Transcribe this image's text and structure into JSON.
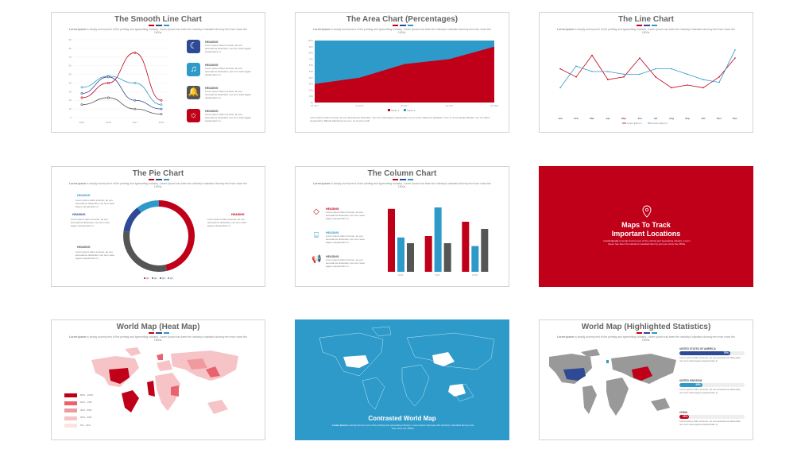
{
  "colors": {
    "red": "#c00018",
    "blue": "#2e9ac9",
    "gray": "#555555",
    "navy": "#2e4a94",
    "darkblue": "#1e3f8a"
  },
  "lorem": "Lorem Ipsum is simply dummy text of the printing and typesetting industry. Lorem Ipsum has been the industry's standard dummy text ever since the 1500s.",
  "lorem_bold": "Lorem Ipsum",
  "lorem_rest": " is simply dummy text of the printing and typesetting industry. Lorem Ipsum has been the industry's standard dummy text ever since the 1500s.",
  "lorem_short": "Lorem ipsum dolor sit amet, an eos accusamus dissentiet, nec sum solet legere eloquentiam in.",
  "slide1": {
    "title": "The Smooth Line Chart",
    "items": [
      {
        "heading": "HEADING",
        "icon": "moon-icon",
        "color": "#2e4a94"
      },
      {
        "heading": "HEADING",
        "icon": "music-icon",
        "color": "#2e9ac9"
      },
      {
        "heading": "HEADING",
        "icon": "bell-icon",
        "color": "#555555"
      },
      {
        "heading": "HEADING",
        "icon": "sun-icon",
        "color": "#c00018"
      }
    ]
  },
  "slide2": {
    "title": "The Area Chart (Percentages)",
    "paragraph": "Lorem ipsum dolor sit amet, an eos accusamus dissentiet, nec sum solet legere eloquentiam. Ius ex lorem habemus salutatus. Cum in omnis tantas fabulas, nec vim ullum eloquentiam. Blandit adipiscing an eum, no sit errem elitr."
  },
  "slide3": {
    "title": "The Line Chart"
  },
  "slide4": {
    "title": "The Pie Chart",
    "headings": [
      "HEADING",
      "HEADING",
      "HEADING",
      "HEADING"
    ],
    "legend": [
      "Q1",
      "Q2",
      "Q3",
      "Q4"
    ]
  },
  "slide5": {
    "title": "The Column Chart",
    "items": [
      {
        "heading": "HEADING",
        "icon": "diamond-icon",
        "color": "#c00018"
      },
      {
        "heading": "HEADING",
        "icon": "ticket-icon",
        "color": "#2e9ac9"
      },
      {
        "heading": "HEADING",
        "icon": "megaphone-icon",
        "color": "#555555"
      }
    ]
  },
  "slide6": {
    "title_line1": "Maps To Track",
    "title_line2": "Important Locations",
    "icon": "location-pin-icon",
    "bg": "#c00018"
  },
  "slide7": {
    "title": "World Map (Heat Map)",
    "legend": [
      "80% - 100%",
      "60% - 79%",
      "40% - 59%",
      "20% - 39%",
      "0% - 19%"
    ],
    "legend_colors": [
      "#c00018",
      "#e9636f",
      "#f09aa0",
      "#f6c4c7",
      "#fbe2e3"
    ]
  },
  "slide8": {
    "title": "Contrasted World Map",
    "bg": "#2e9ac9"
  },
  "slide9": {
    "title": "World Map (Highlighted Statistics)",
    "stats": [
      {
        "label": "UNITED STATES OF AMERICA",
        "value": "78%",
        "fraction": 0.78,
        "color": "#2e4a94"
      },
      {
        "label": "UNITED KINGDOM",
        "value": "35%",
        "fraction": 0.35,
        "color": "#2e9ac9"
      },
      {
        "label": "CHINA",
        "value": "15%",
        "fraction": 0.15,
        "color": "#c00018"
      }
    ]
  },
  "chart_data": [
    {
      "type": "line",
      "title": "The Smooth Line Chart",
      "categories": [
        "2016",
        "2016",
        "2017",
        "2018"
      ],
      "ylim": [
        0,
        90
      ],
      "yticks": [
        0,
        10,
        20,
        30,
        40,
        50,
        60,
        70,
        80,
        90
      ],
      "series": [
        {
          "color": "#c00018",
          "values": [
            23,
            40,
            75,
            20
          ]
        },
        {
          "color": "#2e9ac9",
          "values": [
            35,
            48,
            40,
            15
          ]
        },
        {
          "color": "#2e4a94",
          "values": [
            28,
            47,
            20,
            10
          ]
        },
        {
          "color": "#555555",
          "values": [
            15,
            23,
            10,
            4
          ]
        }
      ]
    },
    {
      "type": "area",
      "title": "The Area Chart (Percentages)",
      "categories": [
        "Q1 2017",
        "Q2 2017",
        "Q3 2017",
        "Q4 2017",
        "Q1 2018"
      ],
      "ylim": [
        0,
        100
      ],
      "yticks": [
        "0%",
        "10%",
        "20%",
        "30%",
        "40%",
        "50%",
        "60%",
        "70%",
        "80%",
        "90%",
        "100%"
      ],
      "series": [
        {
          "name": "Series 1",
          "color": "#c00018",
          "values": [
            30,
            40,
            62,
            70,
            90
          ]
        },
        {
          "name": "Series 2",
          "color": "#2e9ac9",
          "values": [
            70,
            60,
            38,
            30,
            10
          ]
        }
      ]
    },
    {
      "type": "line",
      "title": "The Line Chart",
      "categories": [
        "Jan",
        "Feb",
        "Mar",
        "Apr",
        "May",
        "Jun",
        "Jul",
        "Aug",
        "Sep",
        "Oct",
        "Nov",
        "Dec"
      ],
      "series": [
        {
          "name": "Lorem Ipsum 1",
          "color": "#c00018",
          "values": [
            55,
            40,
            80,
            35,
            40,
            75,
            40,
            20,
            25,
            20,
            40,
            75
          ]
        },
        {
          "name": "Lorem Ipsum 2",
          "color": "#2e9ac9",
          "values": [
            20,
            60,
            50,
            50,
            45,
            45,
            55,
            55,
            45,
            35,
            30,
            90
          ]
        }
      ]
    },
    {
      "type": "pie",
      "title": "The Pie Chart",
      "categories": [
        "Q1",
        "Q2",
        "Q3",
        "Q4"
      ],
      "values": [
        45,
        30,
        12,
        10
      ],
      "colors": [
        "#c00018",
        "#555555",
        "#2e4a94",
        "#2e9ac9"
      ]
    },
    {
      "type": "bar",
      "title": "The Column Chart",
      "categories": [
        "2016",
        "2017",
        "2018"
      ],
      "ylim": [
        0,
        100
      ],
      "series": [
        {
          "color": "#c00018",
          "values": [
            88,
            50,
            70
          ]
        },
        {
          "color": "#2e9ac9",
          "values": [
            48,
            90,
            36
          ]
        },
        {
          "color": "#555555",
          "values": [
            40,
            40,
            60
          ]
        }
      ]
    }
  ]
}
